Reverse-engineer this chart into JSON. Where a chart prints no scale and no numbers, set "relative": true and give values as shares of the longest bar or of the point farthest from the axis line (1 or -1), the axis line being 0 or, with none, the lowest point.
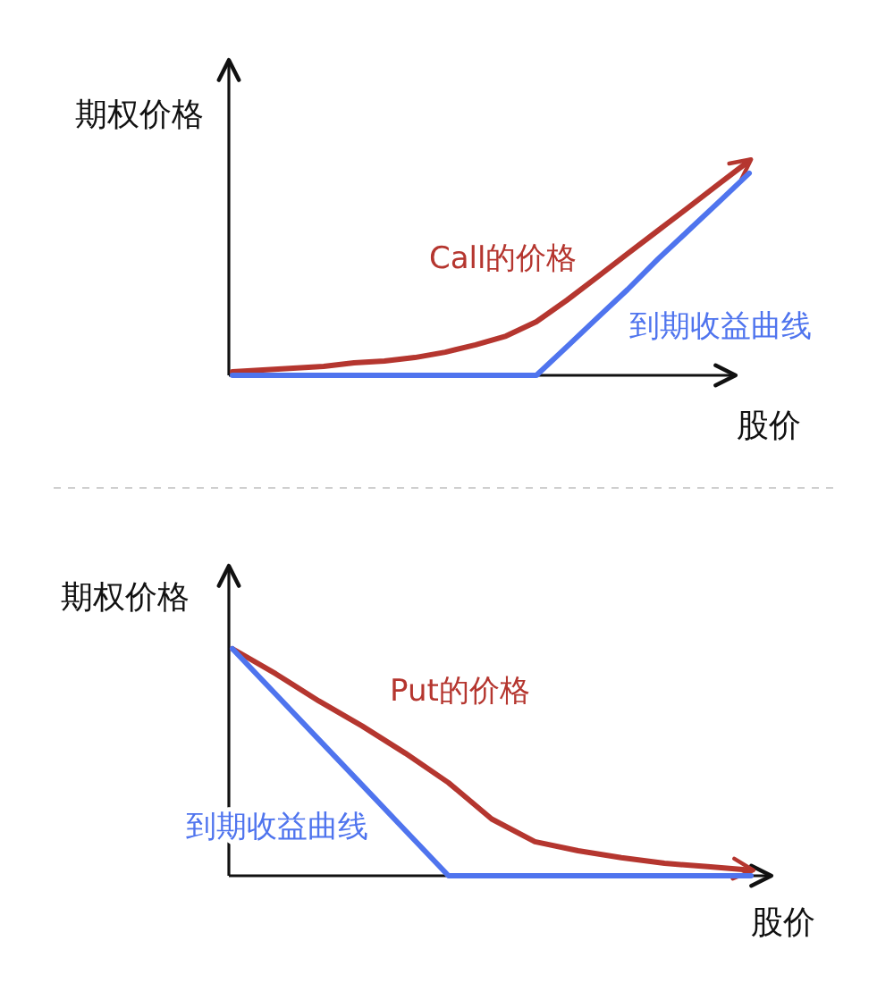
{
  "chart_data": [
    {
      "type": "line",
      "relative": true,
      "ylabel": "期权价格",
      "xlabel": "股价",
      "marker": "none",
      "categories": [
        null,
        null,
        null,
        null,
        null,
        null,
        null,
        null,
        null,
        null,
        null,
        null,
        null,
        null,
        null,
        null,
        null,
        null
      ],
      "series": [
        {
          "name": "Call的价格",
          "color": "#b5362f",
          "values": [
            0.017,
            0.025,
            0.033,
            0.042,
            0.058,
            0.067,
            0.083,
            0.108,
            0.142,
            0.183,
            0.25,
            0.35,
            0.458,
            0.567,
            0.675,
            0.783,
            0.892,
            1
          ]
        },
        {
          "name": "到期收益曲线",
          "color": "#4f74ee",
          "values": [
            0,
            0,
            0,
            0,
            0,
            0,
            0,
            0,
            0,
            0,
            0,
            0.133,
            0.267,
            0.4,
            0.542,
            0.675,
            0.808,
            0.942
          ]
        }
      ]
    },
    {
      "type": "line",
      "relative": true,
      "ylabel": "期权价格",
      "xlabel": "股价",
      "marker": "none",
      "categories": [
        null,
        null,
        null,
        null,
        null,
        null,
        null,
        null,
        null,
        null,
        null,
        null,
        null
      ],
      "series": [
        {
          "name": "Put的价格",
          "color": "#b5362f",
          "values": [
            1,
            0.89,
            0.77,
            0.66,
            0.54,
            0.41,
            0.25,
            0.15,
            0.11,
            0.08,
            0.055,
            0.04,
            0.025
          ]
        },
        {
          "name": "到期收益曲线",
          "color": "#4f74ee",
          "values": [
            1,
            0.8,
            0.6,
            0.4,
            0.2,
            0,
            0,
            0,
            0,
            0,
            0,
            0,
            0
          ]
        }
      ]
    }
  ]
}
